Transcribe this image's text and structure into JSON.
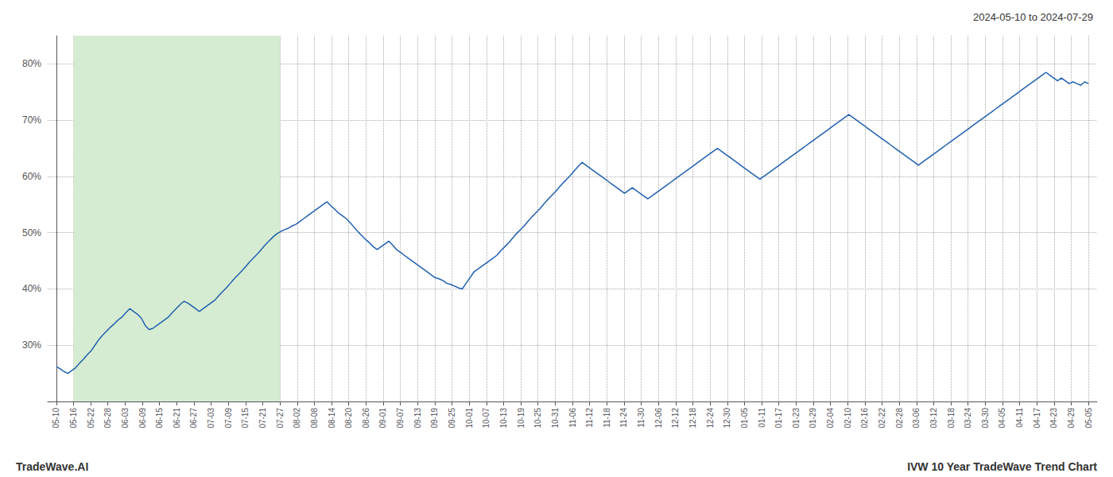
{
  "chart_data": {
    "type": "line",
    "title": "2024-05-10 to 2024-07-29",
    "annotations": [
      "TradeWave.AI",
      "IVW 10 Year TradeWave Trend Chart"
    ],
    "color": "#2060b0",
    "grid": true,
    "highlight": {
      "start": 1,
      "end": 13,
      "color": "#d6ecd2"
    },
    "xlim": [
      -0.5,
      60.5
    ],
    "xticks": [
      {
        "value": 0,
        "label": "05-10"
      },
      {
        "value": 1,
        "label": "05-16"
      },
      {
        "value": 2,
        "label": "05-22"
      },
      {
        "value": 3,
        "label": "05-28"
      },
      {
        "value": 4,
        "label": "06-03"
      },
      {
        "value": 5,
        "label": "06-09"
      },
      {
        "value": 6,
        "label": "06-15"
      },
      {
        "value": 7,
        "label": "06-21"
      },
      {
        "value": 8,
        "label": "06-27"
      },
      {
        "value": 9,
        "label": "07-03"
      },
      {
        "value": 10,
        "label": "07-09"
      },
      {
        "value": 11,
        "label": "07-15"
      },
      {
        "value": 12,
        "label": "07-21"
      },
      {
        "value": 13,
        "label": "07-27"
      },
      {
        "value": 14,
        "label": "08-02"
      },
      {
        "value": 15,
        "label": "08-08"
      },
      {
        "value": 16,
        "label": "08-14"
      },
      {
        "value": 17,
        "label": "08-20"
      },
      {
        "value": 18,
        "label": "08-26"
      },
      {
        "value": 19,
        "label": "09-01"
      },
      {
        "value": 20,
        "label": "09-07"
      },
      {
        "value": 21,
        "label": "09-13"
      },
      {
        "value": 22,
        "label": "09-19"
      },
      {
        "value": 23,
        "label": "09-25"
      },
      {
        "value": 24,
        "label": "10-01"
      },
      {
        "value": 25,
        "label": "10-07"
      },
      {
        "value": 26,
        "label": "10-13"
      },
      {
        "value": 27,
        "label": "10-19"
      },
      {
        "value": 28,
        "label": "10-25"
      },
      {
        "value": 29,
        "label": "10-31"
      },
      {
        "value": 30,
        "label": "11-06"
      },
      {
        "value": 31,
        "label": "11-12"
      },
      {
        "value": 32,
        "label": "11-18"
      },
      {
        "value": 33,
        "label": "11-24"
      },
      {
        "value": 34,
        "label": "11-30"
      },
      {
        "value": 35,
        "label": "12-06"
      },
      {
        "value": 36,
        "label": "12-12"
      },
      {
        "value": 37,
        "label": "12-18"
      },
      {
        "value": 38,
        "label": "12-24"
      },
      {
        "value": 39,
        "label": "12-30"
      },
      {
        "value": 40,
        "label": "01-05"
      },
      {
        "value": 41,
        "label": "01-11"
      },
      {
        "value": 42,
        "label": "01-17"
      },
      {
        "value": 43,
        "label": "01-23"
      },
      {
        "value": 44,
        "label": "01-29"
      },
      {
        "value": 45,
        "label": "02-04"
      },
      {
        "value": 46,
        "label": "02-10"
      },
      {
        "value": 47,
        "label": "02-16"
      },
      {
        "value": 48,
        "label": "02-22"
      },
      {
        "value": 49,
        "label": "02-28"
      },
      {
        "value": 50,
        "label": "03-06"
      },
      {
        "value": 51,
        "label": "03-12"
      },
      {
        "value": 52,
        "label": "03-18"
      },
      {
        "value": 53,
        "label": "03-24"
      },
      {
        "value": 54,
        "label": "03-30"
      },
      {
        "value": 55,
        "label": "04-05"
      },
      {
        "value": 56,
        "label": "04-11"
      },
      {
        "value": 57,
        "label": "04-17"
      },
      {
        "value": 58,
        "label": "04-23"
      },
      {
        "value": 59,
        "label": "04-29"
      },
      {
        "value": 60,
        "label": "05-05"
      }
    ],
    "ylim": [
      20,
      85
    ],
    "yticks": [
      {
        "value": 30,
        "label": "30%"
      },
      {
        "value": 40,
        "label": "40%"
      },
      {
        "value": 50,
        "label": "50%"
      },
      {
        "value": 60,
        "label": "60%"
      },
      {
        "value": 70,
        "label": "70%"
      },
      {
        "value": 80,
        "label": "80%"
      }
    ],
    "values": [
      26.2,
      25.8,
      25.3,
      25.0,
      25.5,
      26.0,
      26.8,
      27.5,
      28.3,
      29.0,
      30.0,
      31.0,
      31.8,
      32.5,
      33.2,
      33.8,
      34.5,
      35.0,
      35.8,
      36.5,
      36.0,
      35.5,
      34.8,
      33.5,
      32.8,
      33.0,
      33.5,
      34.0,
      34.5,
      35.0,
      35.8,
      36.5,
      37.2,
      37.8,
      37.5,
      37.0,
      36.5,
      36.0,
      36.5,
      37.0,
      37.5,
      38.0,
      38.8,
      39.5,
      40.2,
      41.0,
      41.8,
      42.5,
      43.2,
      44.0,
      44.8,
      45.5,
      46.2,
      47.0,
      47.8,
      48.5,
      49.2,
      49.8,
      50.2,
      50.5,
      50.8,
      51.2,
      51.5,
      52.0,
      52.5,
      53.0,
      53.5,
      54.0,
      54.5,
      55.0,
      55.5,
      54.8,
      54.2,
      53.5,
      53.0,
      52.5,
      51.8,
      51.0,
      50.2,
      49.5,
      48.8,
      48.2,
      47.5,
      47.0,
      47.5,
      48.0,
      48.5,
      47.8,
      47.0,
      46.5,
      46.0,
      45.5,
      45.0,
      44.5,
      44.0,
      43.5,
      43.0,
      42.5,
      42.0,
      41.8,
      41.5,
      41.0,
      40.8,
      40.5,
      40.2,
      40.0,
      41.0,
      42.0,
      43.0,
      43.5,
      44.0,
      44.5,
      45.0,
      45.5,
      46.0,
      46.8,
      47.5,
      48.2,
      49.0,
      49.8,
      50.5,
      51.2,
      52.0,
      52.8,
      53.5,
      54.2,
      55.0,
      55.8,
      56.5,
      57.2,
      58.0,
      58.8,
      59.5,
      60.2,
      61.0,
      61.8,
      62.5,
      62.0,
      61.5,
      61.0,
      60.5,
      60.0,
      59.5,
      59.0,
      58.5,
      58.0,
      57.5,
      57.0,
      57.5,
      58.0,
      57.5,
      57.0,
      56.5,
      56.0,
      56.5,
      57.0,
      57.5,
      58.0,
      58.5,
      59.0,
      59.5,
      60.0,
      60.5,
      61.0,
      61.5,
      62.0,
      62.5,
      63.0,
      63.5,
      64.0,
      64.5,
      65.0,
      64.5,
      64.0,
      63.5,
      63.0,
      62.5,
      62.0,
      61.5,
      61.0,
      60.5,
      60.0,
      59.5,
      60.0,
      60.5,
      61.0,
      61.5,
      62.0,
      62.5,
      63.0,
      63.5,
      64.0,
      64.5,
      65.0,
      65.5,
      66.0,
      66.5,
      67.0,
      67.5,
      68.0,
      68.5,
      69.0,
      69.5,
      70.0,
      70.5,
      71.0,
      70.5,
      70.0,
      69.5,
      69.0,
      68.5,
      68.0,
      67.5,
      67.0,
      66.5,
      66.0,
      65.5,
      65.0,
      64.5,
      64.0,
      63.5,
      63.0,
      62.5,
      62.0,
      62.5,
      63.0,
      63.5,
      64.0,
      64.5,
      65.0,
      65.5,
      66.0,
      66.5,
      67.0,
      67.5,
      68.0,
      68.5,
      69.0,
      69.5,
      70.0,
      70.5,
      71.0,
      71.5,
      72.0,
      72.5,
      73.0,
      73.5,
      74.0,
      74.5,
      75.0,
      75.5,
      76.0,
      76.5,
      77.0,
      77.5,
      78.0,
      78.5,
      78.0,
      77.5,
      77.0,
      77.5,
      77.0,
      76.5,
      76.8,
      76.5,
      76.2,
      76.8,
      76.5
    ]
  }
}
